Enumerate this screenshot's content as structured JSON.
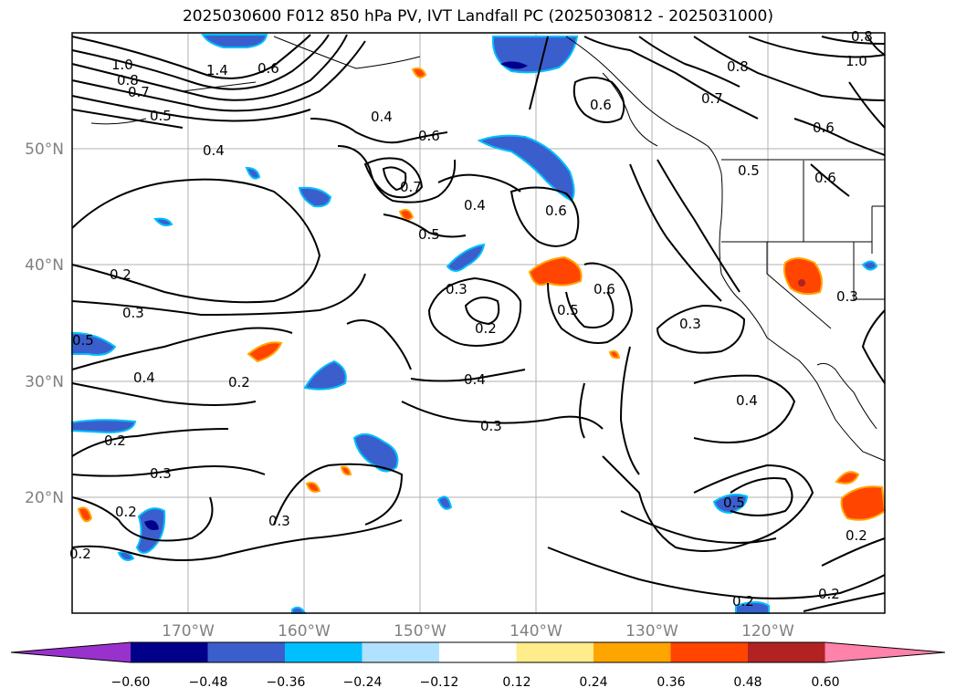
{
  "title": "2025030600 F012 850 hPa PV, IVT Landfall PC (2025030812 - 2025031000)",
  "lat_labels": [
    "50°N",
    "40°N",
    "30°N",
    "20°N"
  ],
  "lon_labels": [
    "170°W",
    "160°W",
    "150°W",
    "140°W",
    "130°W",
    "120°W"
  ],
  "colorbar": {
    "ticks": [
      "−0.60",
      "−0.48",
      "−0.36",
      "−0.24",
      "−0.12",
      "0.12",
      "0.24",
      "0.36",
      "0.48",
      "0.60"
    ],
    "colors": [
      "#9932cc",
      "#00008b",
      "#3a5fcd",
      "#00bfff",
      "#b0e2ff",
      "#ffffff",
      "#ffec8b",
      "#ffa500",
      "#ff4500",
      "#b22222",
      "#ff82ab"
    ],
    "extend_low": "#9932cc",
    "extend_high": "#ff82ab"
  },
  "contour_labels": [
    {
      "text": "1.0"
    },
    {
      "text": "0.8"
    },
    {
      "text": "0.7"
    },
    {
      "text": "1.4"
    },
    {
      "text": "0.6"
    },
    {
      "text": "0.5"
    },
    {
      "text": "0.4"
    },
    {
      "text": "0.4"
    },
    {
      "text": "0.6"
    },
    {
      "text": "0.7"
    },
    {
      "text": "0.4"
    },
    {
      "text": "0.5"
    },
    {
      "text": "0.6"
    },
    {
      "text": "0.6"
    },
    {
      "text": "0.8"
    },
    {
      "text": "0.7"
    },
    {
      "text": "0.6"
    },
    {
      "text": "0.5"
    },
    {
      "text": "0.6"
    },
    {
      "text": "1.0"
    },
    {
      "text": "0.8"
    },
    {
      "text": "0.2"
    },
    {
      "text": "0.3"
    },
    {
      "text": "0.3"
    },
    {
      "text": "0.2"
    },
    {
      "text": "0.6"
    },
    {
      "text": "0.5"
    },
    {
      "text": "0.3"
    },
    {
      "text": "0.3"
    },
    {
      "text": "0.5"
    },
    {
      "text": "0.4"
    },
    {
      "text": "0.2"
    },
    {
      "text": "0.4"
    },
    {
      "text": "0.3"
    },
    {
      "text": "0.4"
    },
    {
      "text": "0.2"
    },
    {
      "text": "0.3"
    },
    {
      "text": "0.2"
    },
    {
      "text": "0.3"
    },
    {
      "text": "0.2"
    },
    {
      "text": "0.5"
    },
    {
      "text": "0.2"
    },
    {
      "text": "0.2"
    },
    {
      "text": "0.2"
    }
  ]
}
